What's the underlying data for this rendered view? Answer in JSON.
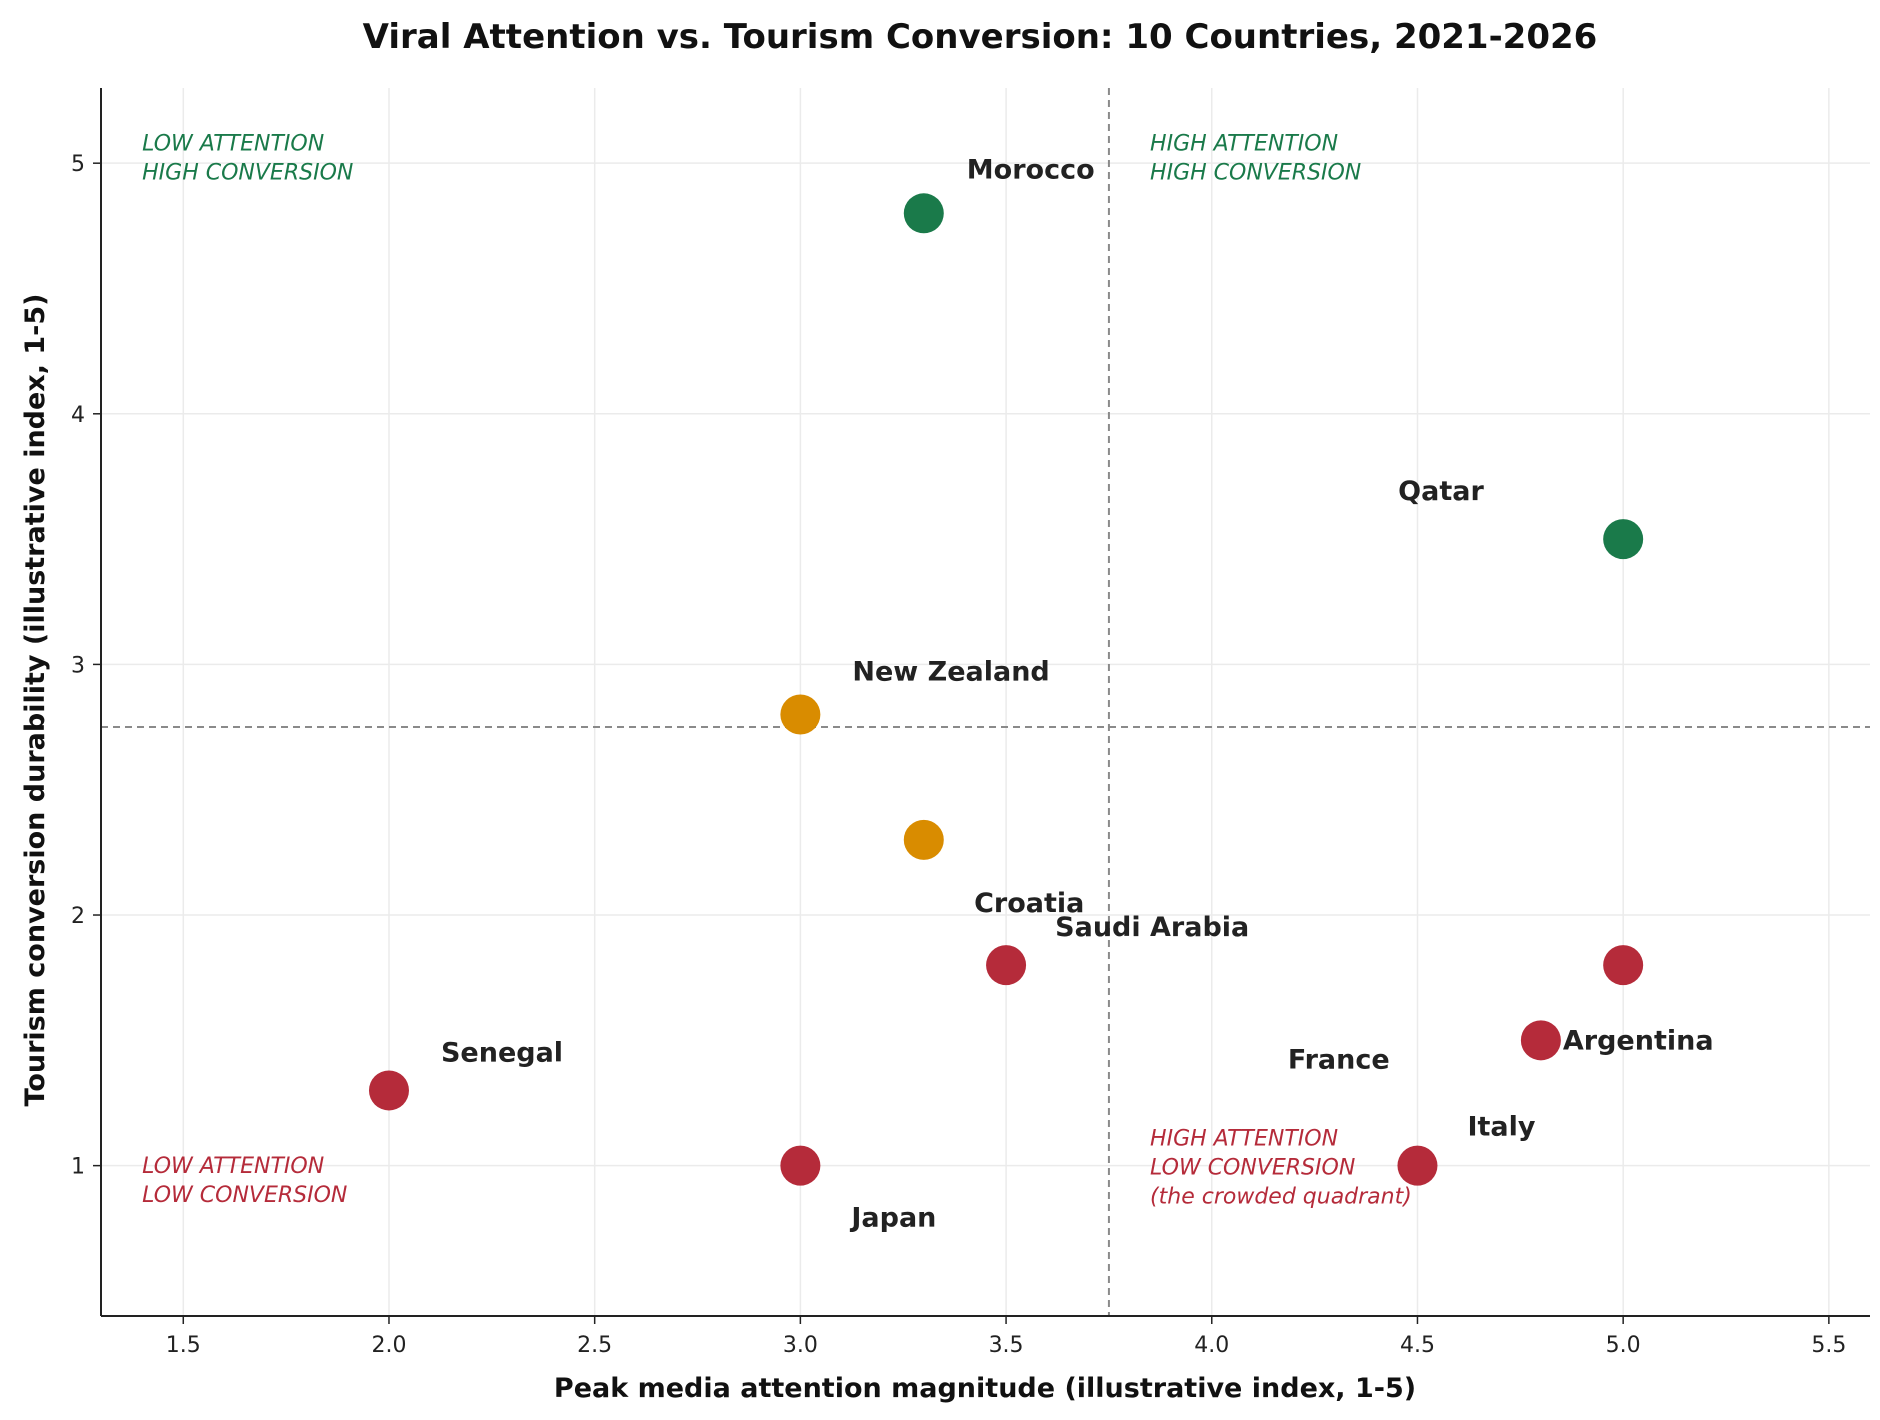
{
  "chart_data": {
    "type": "scatter",
    "title": "Viral Attention vs. Tourism Conversion: 10 Countries, 2021-2026",
    "xlabel": "Peak media attention magnitude (illustrative index, 1-5)",
    "ylabel": "Tourism conversion durability (illustrative index, 1-5)",
    "xlim": [
      1.3,
      5.6
    ],
    "ylim": [
      0.4,
      5.3
    ],
    "xticks": [
      "1.5",
      "2.0",
      "2.5",
      "3.0",
      "3.5",
      "4.0",
      "4.5",
      "5.0",
      "5.5"
    ],
    "yticks": [
      "1",
      "2",
      "3",
      "4",
      "5"
    ],
    "grid": true,
    "thresholds": {
      "x": 3.75,
      "y": 2.75
    },
    "colors": {
      "high": "#1a7a4a",
      "mid": "#d98c00",
      "low": "#b52b3a"
    },
    "points": [
      {
        "label": "Morocco",
        "x": 3.3,
        "y": 4.8,
        "group": "high"
      },
      {
        "label": "Qatar",
        "x": 5.0,
        "y": 3.5,
        "group": "high"
      },
      {
        "label": "New Zealand",
        "x": 3.0,
        "y": 2.8,
        "group": "mid"
      },
      {
        "label": "",
        "x": 3.3,
        "y": 2.3,
        "group": "mid"
      },
      {
        "label": "Croatia",
        "x": 3.5,
        "y": 1.8,
        "group": "low"
      },
      {
        "label": "Saudi Arabia",
        "x": 5.0,
        "y": 1.8,
        "group": "low"
      },
      {
        "label": "France",
        "x": 4.8,
        "y": 1.5,
        "group": "low"
      },
      {
        "label": "Argentina",
        "x": 4.8,
        "y": 1.5,
        "group": "low"
      },
      {
        "label": "Italy",
        "x": 4.5,
        "y": 1.0,
        "group": "low"
      },
      {
        "label": "Senegal",
        "x": 2.0,
        "y": 1.3,
        "group": "low"
      },
      {
        "label": "Japan",
        "x": 3.0,
        "y": 1.0,
        "group": "low"
      }
    ],
    "annotations": [
      {
        "lines": [
          "LOW ATTENTION",
          "HIGH CONVERSION"
        ],
        "group": "high"
      },
      {
        "lines": [
          "HIGH ATTENTION",
          "HIGH CONVERSION"
        ],
        "group": "high"
      },
      {
        "lines": [
          "LOW ATTENTION",
          "LOW CONVERSION"
        ],
        "group": "low"
      },
      {
        "lines": [
          "HIGH ATTENTION",
          "LOW CONVERSION",
          "(the crowded quadrant)"
        ],
        "group": "low"
      }
    ]
  }
}
